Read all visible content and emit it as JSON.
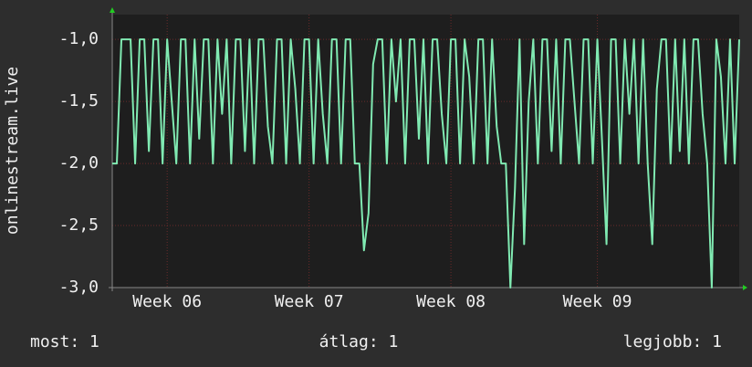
{
  "chart_data": {
    "type": "line",
    "y_label": "onlinestream.live",
    "series": [
      {
        "name": "onlinestream.live",
        "color": "#80eab2",
        "values": [
          -2,
          -2,
          -1,
          -1,
          -1,
          -2,
          -1,
          -1,
          -1.9,
          -1,
          -1,
          -2,
          -1,
          -1.5,
          -2,
          -1,
          -1,
          -2,
          -1,
          -1.8,
          -1,
          -1,
          -2,
          -1,
          -1.6,
          -1,
          -2,
          -1,
          -1,
          -1.9,
          -1,
          -2,
          -1,
          -1,
          -1.7,
          -2,
          -1,
          -1,
          -2,
          -1,
          -1.4,
          -2,
          -1,
          -1,
          -2,
          -1,
          -1.6,
          -2,
          -1,
          -1,
          -2,
          -1,
          -1,
          -2,
          -2,
          -2.7,
          -2.4,
          -1.2,
          -1,
          -1,
          -2,
          -1,
          -1.5,
          -1,
          -2,
          -1,
          -1,
          -1.8,
          -1,
          -2,
          -1,
          -1,
          -1.6,
          -2,
          -1,
          -1,
          -2,
          -1,
          -1.3,
          -2,
          -1,
          -1,
          -2,
          -1,
          -1.7,
          -2,
          -2,
          -3.0,
          -2.2,
          -1,
          -2.65,
          -1.5,
          -1,
          -2,
          -1,
          -1,
          -1.9,
          -1,
          -2,
          -1,
          -1,
          -1.5,
          -2,
          -1,
          -1,
          -2,
          -1,
          -1.8,
          -2.65,
          -1,
          -1,
          -2,
          -1,
          -1.6,
          -1,
          -2,
          -1,
          -2,
          -2.65,
          -1.4,
          -1,
          -1,
          -2,
          -1,
          -1.9,
          -1,
          -2,
          -1,
          -1,
          -1.6,
          -2,
          -3.0,
          -1,
          -1.3,
          -2,
          -1,
          -2,
          -1
        ]
      }
    ],
    "xlim": [
      0,
      137
    ],
    "xticks": [
      {
        "value": 12,
        "label": "Week 06"
      },
      {
        "value": 43,
        "label": "Week 07"
      },
      {
        "value": 74,
        "label": "Week 08"
      },
      {
        "value": 106,
        "label": "Week 09"
      }
    ],
    "ylim": [
      -3.0,
      -0.8
    ],
    "yticks": [
      {
        "value": -3.0,
        "label": "-3,0"
      },
      {
        "value": -2.5,
        "label": "-2,5"
      },
      {
        "value": -2.0,
        "label": "-2,0"
      },
      {
        "value": -1.5,
        "label": "-1,5"
      },
      {
        "value": -1.0,
        "label": "-1,0"
      }
    ],
    "grid": true,
    "legend": [
      "most: 1",
      "átlag: 1",
      "legjobb: 1"
    ]
  }
}
